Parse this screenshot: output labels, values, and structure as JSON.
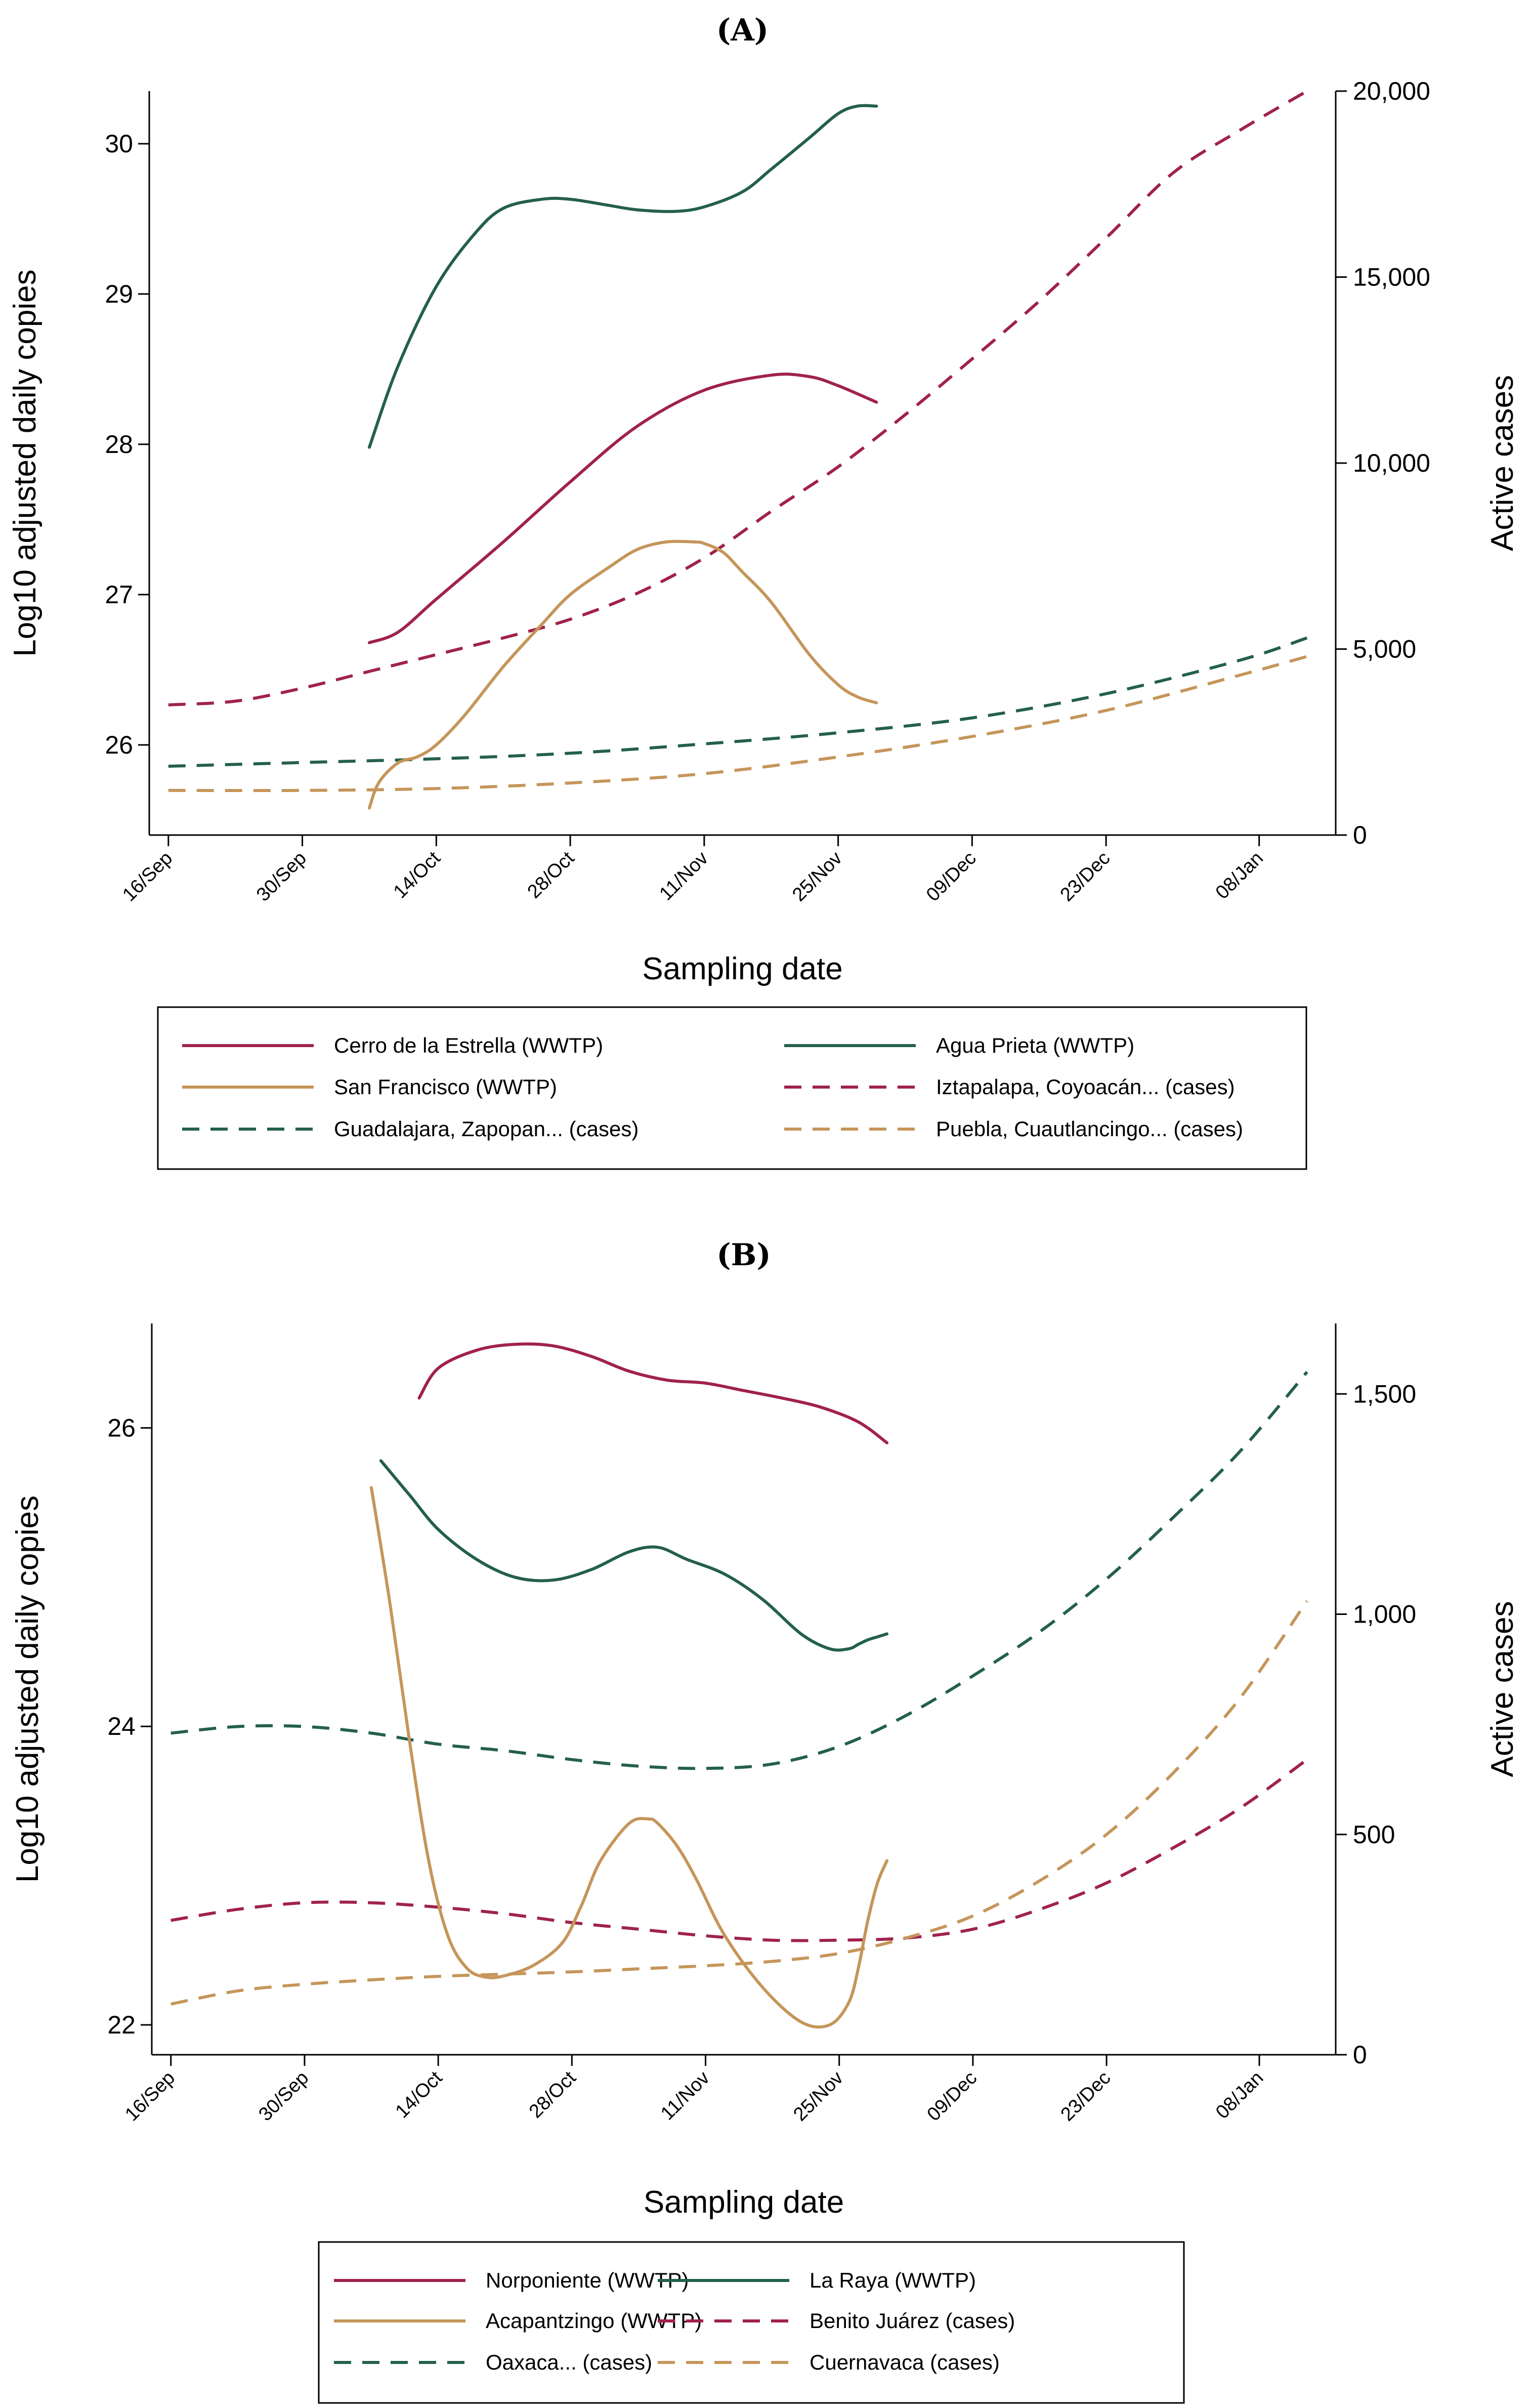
{
  "chart_data": [
    {
      "type": "line",
      "panel": "(A)",
      "xlabel": "Sampling date",
      "ylabel_left": "Log10 adjusted daily copies",
      "ylabel_right": "Active cases",
      "x_ticks": [
        "16/Sep",
        "30/Sep",
        "14/Oct",
        "28/Oct",
        "11/Nov",
        "25/Nov",
        "09/Dec",
        "23/Dec",
        "08/Jan"
      ],
      "x_tick_days": [
        0,
        14,
        28,
        42,
        56,
        70,
        84,
        98,
        114
      ],
      "x_range": [
        -2,
        122
      ],
      "y_left_ticks": [
        "26",
        "27",
        "28",
        "29",
        "30"
      ],
      "y_left_tick_values": [
        26,
        27,
        28,
        29,
        30
      ],
      "y_left_range": [
        25.4,
        30.35
      ],
      "y_right_ticks": [
        "0",
        "5,000",
        "10,000",
        "15,000",
        "20,000"
      ],
      "y_right_tick_values": [
        0,
        5000,
        10000,
        15000,
        20000
      ],
      "y_right_range": [
        0,
        20000
      ],
      "legend_cols": 2,
      "series": [
        {
          "name": "Cerro de la Estrella (WWTP)",
          "axis": "left",
          "color": "#a0224a",
          "dash": false,
          "x": [
            21,
            24,
            28,
            35,
            42,
            49,
            56,
            63,
            67,
            70,
            74
          ],
          "y": [
            26.68,
            26.75,
            26.97,
            27.35,
            27.75,
            28.12,
            28.36,
            28.46,
            28.45,
            28.39,
            28.28
          ]
        },
        {
          "name": "Agua Prieta (WWTP)",
          "axis": "left",
          "color": "#24604a",
          "dash": false,
          "x": [
            21,
            24,
            28,
            32,
            35,
            39,
            42,
            46,
            49,
            53,
            56,
            60,
            63,
            67,
            70,
            72,
            74
          ],
          "y": [
            27.98,
            28.52,
            29.05,
            29.4,
            29.57,
            29.63,
            29.63,
            29.59,
            29.56,
            29.55,
            29.58,
            29.68,
            29.83,
            30.04,
            30.2,
            30.25,
            30.25
          ]
        },
        {
          "name": "San Francisco (WWTP)",
          "axis": "left",
          "color": "#c5955a",
          "dash": false,
          "x": [
            21,
            22,
            24,
            26,
            28,
            31,
            35,
            39,
            42,
            46,
            49,
            52,
            55,
            56,
            58,
            60,
            63,
            67,
            70,
            72,
            74
          ],
          "y": [
            25.58,
            25.75,
            25.88,
            25.92,
            26.0,
            26.2,
            26.52,
            26.8,
            27.0,
            27.18,
            27.3,
            27.35,
            27.35,
            27.34,
            27.28,
            27.15,
            26.95,
            26.6,
            26.4,
            26.32,
            26.28
          ]
        },
        {
          "name": "Iztapalapa, Coyoacán... (cases)",
          "axis": "right",
          "color": "#a0224a",
          "dash": true,
          "x": [
            0,
            7,
            14,
            21,
            28,
            35,
            42,
            49,
            56,
            63,
            70,
            77,
            84,
            91,
            98,
            105,
            112,
            119
          ],
          "y": [
            3500,
            3600,
            3950,
            4400,
            4850,
            5300,
            5800,
            6500,
            7450,
            8700,
            9900,
            11300,
            12800,
            14350,
            16050,
            17800,
            18950,
            20000
          ]
        },
        {
          "name": "Guadalajara, Zapopan... (cases)",
          "axis": "right",
          "color": "#24604a",
          "dash": true,
          "x": [
            0,
            14,
            28,
            42,
            56,
            70,
            84,
            98,
            112,
            119
          ],
          "y": [
            1850,
            1950,
            2050,
            2200,
            2450,
            2750,
            3150,
            3800,
            4700,
            5300
          ]
        },
        {
          "name": "Puebla, Cuautlancingo... (cases)",
          "axis": "right",
          "color": "#c5955a",
          "dash": true,
          "x": [
            0,
            14,
            28,
            42,
            56,
            70,
            84,
            98,
            112,
            119
          ],
          "y": [
            1200,
            1200,
            1250,
            1400,
            1650,
            2100,
            2650,
            3350,
            4300,
            4800
          ]
        }
      ]
    },
    {
      "type": "line",
      "panel": "(B)",
      "xlabel": "Sampling date",
      "ylabel_left": "Log10 adjusted daily copies",
      "ylabel_right": "Active cases",
      "x_ticks": [
        "16/Sep",
        "30/Sep",
        "14/Oct",
        "28/Oct",
        "11/Nov",
        "25/Nov",
        "09/Dec",
        "23/Dec",
        "08/Jan"
      ],
      "x_tick_days": [
        0,
        14,
        28,
        42,
        56,
        70,
        84,
        98,
        114
      ],
      "x_range": [
        -2,
        122
      ],
      "y_left_ticks": [
        "22",
        "24",
        "26"
      ],
      "y_left_tick_values": [
        22,
        24,
        26
      ],
      "y_left_range": [
        21.8,
        26.7
      ],
      "y_right_ticks": [
        "0",
        "500",
        "1,000",
        "1,500"
      ],
      "y_right_tick_values": [
        0,
        500,
        1000,
        1500
      ],
      "y_right_range": [
        0,
        1660
      ],
      "legend_cols": 2,
      "series": [
        {
          "name": "Norponiente (WWTP)",
          "axis": "left",
          "color": "#a0224a",
          "dash": false,
          "x": [
            26,
            28,
            32,
            36,
            40,
            44,
            48,
            52,
            56,
            60,
            64,
            68,
            72,
            75
          ],
          "y": [
            26.2,
            26.4,
            26.52,
            26.56,
            26.55,
            26.48,
            26.38,
            26.32,
            26.3,
            26.25,
            26.2,
            26.14,
            26.04,
            25.9
          ]
        },
        {
          "name": "La Raya (WWTP)",
          "axis": "left",
          "color": "#24604a",
          "dash": false,
          "x": [
            22,
            25,
            28,
            32,
            36,
            40,
            44,
            48,
            51,
            54,
            58,
            62,
            66,
            69,
            71,
            72,
            73,
            74,
            75
          ],
          "y": [
            25.78,
            25.55,
            25.32,
            25.12,
            25.0,
            24.98,
            25.05,
            25.17,
            25.2,
            25.12,
            25.02,
            24.85,
            24.62,
            24.52,
            24.52,
            24.55,
            24.58,
            24.6,
            24.62
          ]
        },
        {
          "name": "Acapantzingo (WWTP)",
          "axis": "left",
          "color": "#c5955a",
          "dash": false,
          "x": [
            21,
            23,
            25,
            27,
            29,
            31,
            33,
            35,
            38,
            41,
            43,
            45,
            48,
            50,
            51,
            53,
            55,
            58,
            62,
            66,
            69,
            71,
            72,
            73,
            74,
            75
          ],
          "y": [
            25.6,
            24.8,
            23.9,
            23.1,
            22.6,
            22.38,
            22.32,
            22.33,
            22.4,
            22.55,
            22.8,
            23.1,
            23.35,
            23.38,
            23.35,
            23.2,
            22.98,
            22.6,
            22.25,
            22.02,
            22.0,
            22.15,
            22.38,
            22.7,
            22.95,
            23.1
          ]
        },
        {
          "name": "Benito Juárez (cases)",
          "axis": "right",
          "color": "#a0224a",
          "dash": true,
          "x": [
            0,
            7,
            14,
            21,
            28,
            35,
            42,
            49,
            56,
            63,
            70,
            77,
            84,
            91,
            98,
            105,
            112,
            119
          ],
          "y": [
            305,
            330,
            345,
            345,
            335,
            320,
            300,
            285,
            270,
            260,
            260,
            265,
            285,
            330,
            390,
            470,
            560,
            670
          ]
        },
        {
          "name": "Oaxaca... (cases)",
          "axis": "right",
          "color": "#24604a",
          "dash": true,
          "x": [
            0,
            7,
            14,
            21,
            28,
            35,
            42,
            49,
            56,
            63,
            70,
            77,
            84,
            91,
            98,
            105,
            112,
            119
          ],
          "y": [
            730,
            745,
            745,
            730,
            705,
            690,
            670,
            655,
            650,
            660,
            700,
            770,
            860,
            960,
            1080,
            1220,
            1370,
            1550
          ]
        },
        {
          "name": "Cuernavaca (cases)",
          "axis": "right",
          "color": "#c5955a",
          "dash": true,
          "x": [
            0,
            7,
            14,
            21,
            28,
            35,
            42,
            49,
            56,
            63,
            70,
            77,
            84,
            91,
            98,
            105,
            112,
            119
          ],
          "y": [
            115,
            145,
            160,
            170,
            178,
            183,
            188,
            195,
            202,
            212,
            230,
            265,
            315,
            395,
            500,
            640,
            810,
            1030
          ]
        }
      ]
    }
  ]
}
